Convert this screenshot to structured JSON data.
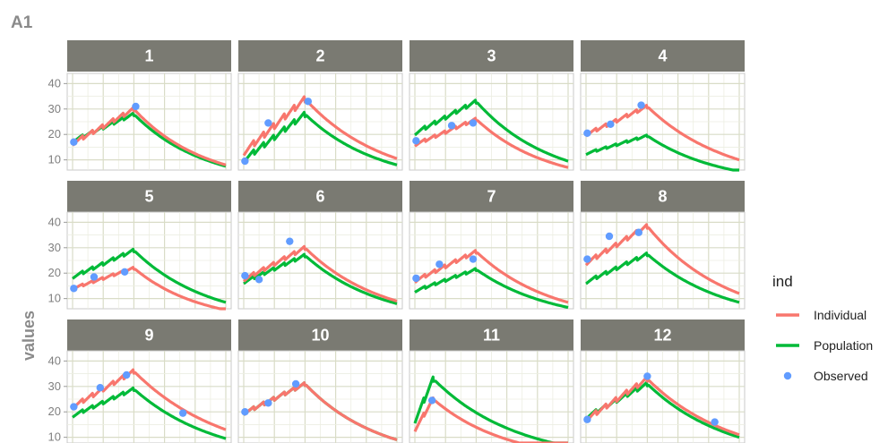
{
  "tag": "A1",
  "chart_data": {
    "type": "line",
    "facet_layout": {
      "ncol": 4,
      "nrow": 3
    },
    "y_ticks": [
      10,
      20,
      30,
      40
    ],
    "ylim": [
      6,
      44
    ],
    "xlim": [
      0,
      25
    ],
    "ylabel": "values",
    "xlabel": "",
    "grid": true,
    "legend": {
      "title": "ind",
      "position": "right",
      "entries": [
        {
          "key": "Individual",
          "label": "Individual",
          "color": "#F8766D",
          "shape": "line"
        },
        {
          "key": "Population",
          "label": "Population",
          "color": "#00BA38",
          "shape": "line"
        },
        {
          "key": "Observed",
          "label": "Observed",
          "color": "#619CFF",
          "shape": "point"
        }
      ]
    },
    "panels": [
      {
        "label": "1",
        "ind_start": 16.5,
        "ind_peak": 30,
        "ind_end": 8,
        "pop_start": 17.5,
        "pop_peak": 28,
        "pop_end": 7.5,
        "peak_x": 10,
        "obs": [
          [
            0.2,
            17
          ],
          [
            10.3,
            31
          ]
        ]
      },
      {
        "label": "2",
        "ind_start": 13,
        "ind_peak": 34,
        "ind_end": 10.5,
        "pop_start": 10,
        "pop_peak": 28,
        "pop_end": 8,
        "peak_x": 10,
        "obs": [
          [
            0.2,
            9.5
          ],
          [
            4,
            24.5
          ],
          [
            10.5,
            33
          ]
        ]
      },
      {
        "label": "3",
        "ind_start": 16,
        "ind_peak": 26,
        "ind_end": 7,
        "pop_start": 20.5,
        "pop_peak": 33,
        "pop_end": 9.5,
        "peak_x": 10,
        "obs": [
          [
            0.2,
            17.5
          ],
          [
            6,
            23.5
          ],
          [
            9.5,
            24.5
          ]
        ]
      },
      {
        "label": "4",
        "ind_start": 20,
        "ind_peak": 31,
        "ind_end": 10,
        "pop_start": 12.5,
        "pop_peak": 19.5,
        "pop_end": 5.5,
        "peak_x": 10,
        "obs": [
          [
            0.2,
            20.5
          ],
          [
            4,
            24
          ],
          [
            9,
            31.5
          ]
        ]
      },
      {
        "label": "5",
        "ind_start": 14,
        "ind_peak": 22,
        "ind_end": 5.5,
        "pop_start": 18.5,
        "pop_peak": 29,
        "pop_end": 8.5,
        "peak_x": 10,
        "obs": [
          [
            0.2,
            14
          ],
          [
            3.5,
            18.5
          ],
          [
            8.5,
            20.5
          ]
        ]
      },
      {
        "label": "6",
        "ind_start": 17.5,
        "ind_peak": 30,
        "ind_end": 9,
        "pop_start": 16.5,
        "pop_peak": 27,
        "pop_end": 8,
        "peak_x": 10,
        "obs": [
          [
            0.2,
            19
          ],
          [
            2.5,
            17.5
          ],
          [
            7.5,
            32.5
          ]
        ]
      },
      {
        "label": "7",
        "ind_start": 17,
        "ind_peak": 28.5,
        "ind_end": 8.5,
        "pop_start": 13,
        "pop_peak": 21.5,
        "pop_end": 6.5,
        "peak_x": 10,
        "obs": [
          [
            0.2,
            18
          ],
          [
            4,
            23.5
          ],
          [
            9.5,
            25.5
          ]
        ]
      },
      {
        "label": "8",
        "ind_start": 24,
        "ind_peak": 38.5,
        "ind_end": 12,
        "pop_start": 16.5,
        "pop_peak": 27.5,
        "pop_end": 8.5,
        "peak_x": 10,
        "obs": [
          [
            0.2,
            25.5
          ],
          [
            3.8,
            34.5
          ],
          [
            8.6,
            36
          ]
        ]
      },
      {
        "label": "9",
        "ind_start": 22,
        "ind_peak": 36,
        "ind_end": 13,
        "pop_start": 18.5,
        "pop_peak": 29,
        "pop_end": 9.5,
        "peak_x": 10,
        "obs": [
          [
            0.2,
            22
          ],
          [
            4.5,
            29.5
          ],
          [
            8.8,
            34.5
          ],
          [
            18,
            19.5
          ]
        ]
      },
      {
        "label": "10",
        "ind_start": 19.5,
        "ind_peak": 31,
        "ind_end": 9,
        "pop_start": 19.5,
        "pop_peak": 31,
        "pop_end": 9,
        "peak_x": 10,
        "obs": [
          [
            0.2,
            20
          ],
          [
            4,
            23.5
          ],
          [
            8.5,
            31
          ]
        ]
      },
      {
        "label": "11",
        "ind_start": 13,
        "ind_peak": 25,
        "ind_end": 4,
        "pop_start": 16.5,
        "pop_peak": 33,
        "pop_end": 6.5,
        "peak_x": 3,
        "obs": [
          [
            2.8,
            24.5
          ]
        ]
      },
      {
        "label": "12",
        "ind_start": 17,
        "ind_peak": 33,
        "ind_end": 11,
        "pop_start": 18,
        "pop_peak": 31,
        "pop_end": 10,
        "peak_x": 10,
        "obs": [
          [
            0.2,
            17
          ],
          [
            10,
            34
          ],
          [
            21,
            16
          ]
        ]
      }
    ]
  }
}
